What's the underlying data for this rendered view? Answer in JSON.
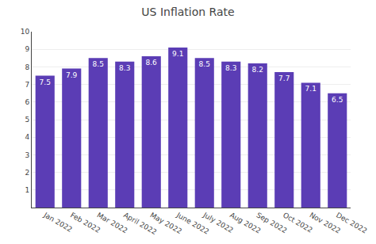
{
  "chart_data": {
    "type": "bar",
    "title": "US Inflation Rate",
    "categories": [
      "Jan 2022",
      "Feb 2022",
      "Mar 2022",
      "April 2022",
      "May 2022",
      "June 2022",
      "July 2022",
      "Aug 2022",
      "Sep 2022",
      "Oct 2022",
      "Nov 2022",
      "Dec 2022"
    ],
    "values": [
      7.5,
      7.9,
      8.5,
      8.3,
      8.6,
      9.1,
      8.5,
      8.3,
      8.2,
      7.7,
      7.1,
      6.5
    ],
    "color": "#5B3DB5",
    "ylim": [
      0,
      10
    ],
    "yticks": [
      1,
      2,
      3,
      4,
      5,
      6,
      7,
      8,
      9,
      10
    ],
    "grid": true,
    "data_labels": true
  }
}
